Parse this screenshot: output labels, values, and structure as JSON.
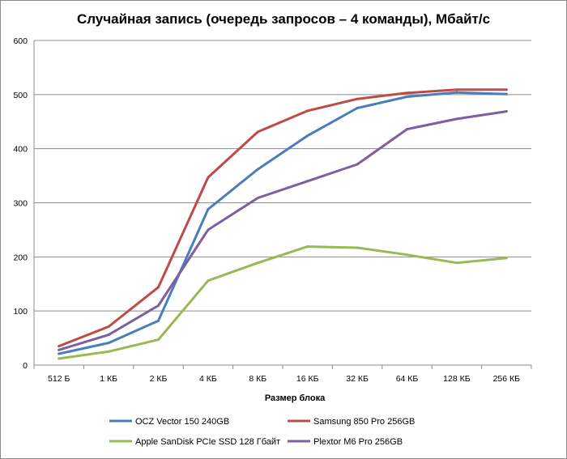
{
  "chart_data": {
    "type": "line",
    "title": "Случайная запись (очередь запросов – 4 команды), Мбайт/с",
    "xlabel": "Размер блока",
    "ylabel": "",
    "categories": [
      "512 Б",
      "1 КБ",
      "2 КБ",
      "4 КБ",
      "8 КБ",
      "16 КБ",
      "32 КБ",
      "64 КБ",
      "128 КБ",
      "256 КБ"
    ],
    "ylim": [
      0,
      600
    ],
    "yticks": [
      0,
      100,
      200,
      300,
      400,
      500,
      600
    ],
    "grid": true,
    "legend_position": "bottom",
    "series": [
      {
        "name": "OCZ Vector 150 240GB",
        "color": "#4a7ebb",
        "values": [
          21,
          41,
          82,
          288,
          362,
          424,
          475,
          496,
          504,
          501
        ]
      },
      {
        "name": "Samsung 850 Pro 256GB",
        "color": "#be4b48",
        "values": [
          35,
          71,
          144,
          347,
          431,
          470,
          492,
          503,
          509,
          509
        ]
      },
      {
        "name": "Apple SanDisk PCIe SSD 128 Гбайт",
        "color": "#98b954",
        "values": [
          12,
          25,
          47,
          156,
          189,
          219,
          217,
          204,
          189,
          198
        ]
      },
      {
        "name": "Plextor M6 Pro 256GB",
        "color": "#7d60a0",
        "values": [
          28,
          56,
          110,
          250,
          309,
          340,
          371,
          436,
          455,
          469
        ]
      }
    ]
  }
}
